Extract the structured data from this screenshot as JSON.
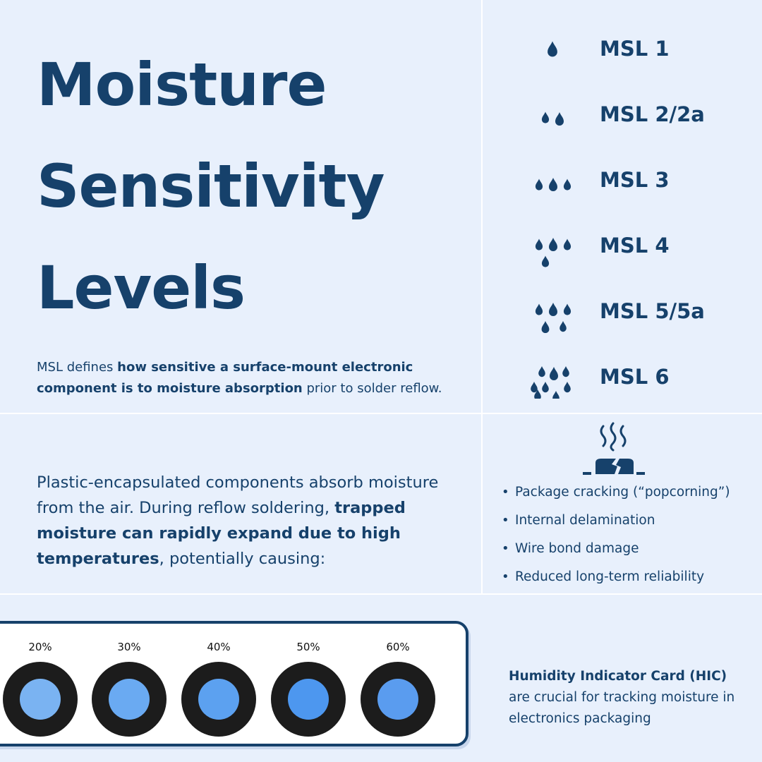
{
  "colors": {
    "background": "#e8f0fc",
    "brand_navy": "#16416b",
    "divider": "#ffffff",
    "card_border": "#16416b",
    "spot_ring": "#1c1c1c"
  },
  "title": {
    "line1": "Moisture",
    "line2": "Sensitivity",
    "line3": "Levels"
  },
  "intro": {
    "prefix": "MSL defines ",
    "bold": "how sensitive a surface-mount electronic component is to moisture absorption",
    "suffix": " prior to solder reflow."
  },
  "msl_levels": [
    {
      "label": "MSL 1",
      "icon": "water-drop-icon",
      "drop_count": 1
    },
    {
      "label": "MSL 2/2a",
      "icon": "water-drops-icon",
      "drop_count": 2
    },
    {
      "label": "MSL 3",
      "icon": "water-drops-icon",
      "drop_count": 3
    },
    {
      "label": "MSL 4",
      "icon": "water-drops-icon",
      "drop_count": 4
    },
    {
      "label": "MSL 5/5a",
      "icon": "water-drops-icon",
      "drop_count": 5
    },
    {
      "label": "MSL 6",
      "icon": "water-drops-icon",
      "drop_count": 9
    }
  ],
  "explanation": {
    "part1": "Plastic-encapsulated components absorb moisture from the air. During reflow soldering, ",
    "bold": "trapped moisture can rapidly expand due to high temperatures",
    "part2": ", potentially causing:"
  },
  "effects_icon": "heated-cracked-chip-icon",
  "effects": [
    "Package cracking (“popcorning”)",
    "Internal delamination",
    "Wire bond damage",
    "Reduced long-term reliability"
  ],
  "humidity_card": {
    "spots": [
      {
        "label": "20%",
        "color": "#7ab3f2"
      },
      {
        "label": "30%",
        "color": "#6aaaf2"
      },
      {
        "label": "40%",
        "color": "#5ca1f0"
      },
      {
        "label": "50%",
        "color": "#4d97ef"
      },
      {
        "label": "60%",
        "color": "#5a9cef"
      }
    ]
  },
  "hic": {
    "bold": "Humidity Indicator Card (HIC)",
    "text": "are crucial for tracking moisture in electronics packaging"
  }
}
